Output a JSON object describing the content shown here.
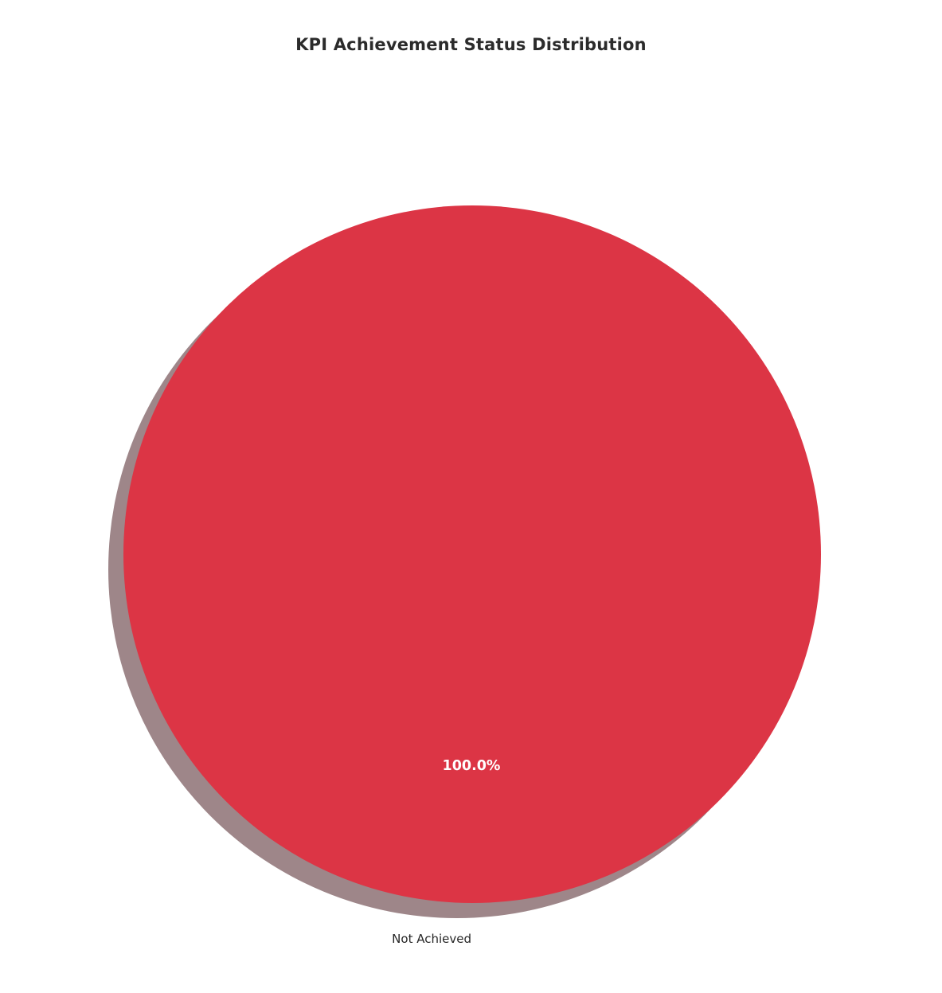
{
  "title": "KPI Achievement Status Distribution",
  "chart_data": {
    "type": "pie",
    "title": "KPI Achievement Status Distribution",
    "categories": [
      "Not Achieved"
    ],
    "values": [
      100.0
    ],
    "percent_labels": [
      "100.0%"
    ],
    "colors": [
      "#DC3545"
    ],
    "shadow": true,
    "shadow_color": "#9E8689",
    "start_angle": 90,
    "legend": "none",
    "background_color": "#FFFFFF",
    "title_color": "#2B2B2B",
    "label_color": "#262626",
    "pct_text_color": "#FFFFFF"
  }
}
